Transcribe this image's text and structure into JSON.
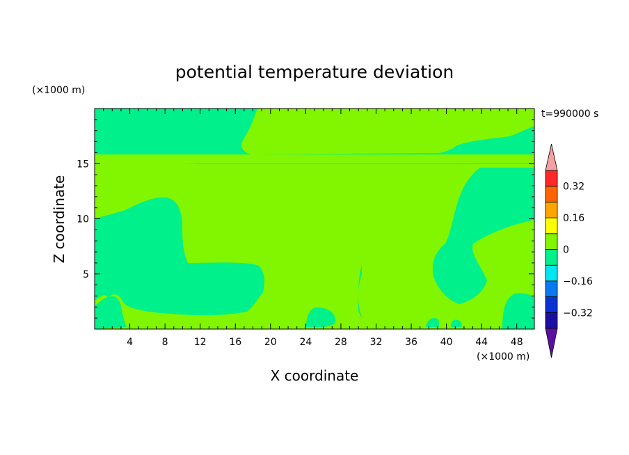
{
  "chart_data": {
    "type": "heatmap",
    "title": "potential temperature deviation",
    "xlabel": "X coordinate",
    "ylabel": "Z coordinate",
    "x_unit": "(×1000 m)",
    "z_unit": "(×1000 m)",
    "time_label": "t=990000 s",
    "xlim": [
      0,
      50
    ],
    "zlim": [
      0,
      20
    ],
    "x_ticks": [
      4,
      8,
      12,
      16,
      20,
      24,
      28,
      32,
      36,
      40,
      44,
      48
    ],
    "z_ticks": [
      5,
      10,
      15
    ],
    "colorbar": {
      "levels": [
        -0.4,
        -0.32,
        -0.24,
        -0.16,
        -0.08,
        0,
        0.08,
        0.16,
        0.24,
        0.32,
        0.4
      ],
      "colors": [
        "#5a0fa0",
        "#1a0fa0",
        "#0a32d2",
        "#0a78f0",
        "#00e6f0",
        "#00f08c",
        "#82f500",
        "#ffff00",
        "#ffa500",
        "#ff6400",
        "#ff2828",
        "#f5a0a0"
      ],
      "labels": [
        {
          "value": 0.32,
          "text": "0.32"
        },
        {
          "value": 0.16,
          "text": "0.16"
        },
        {
          "value": 0,
          "text": "0"
        },
        {
          "value": -0.16,
          "text": "−0.16"
        },
        {
          "value": -0.32,
          "text": "−0.32"
        }
      ]
    },
    "field": {
      "levels": [
        {
          "name": "level -0.08 to 0",
          "color": "#00f08c"
        },
        {
          "name": "level 0 to 0.08",
          "color": "#82f500"
        }
      ]
    }
  }
}
